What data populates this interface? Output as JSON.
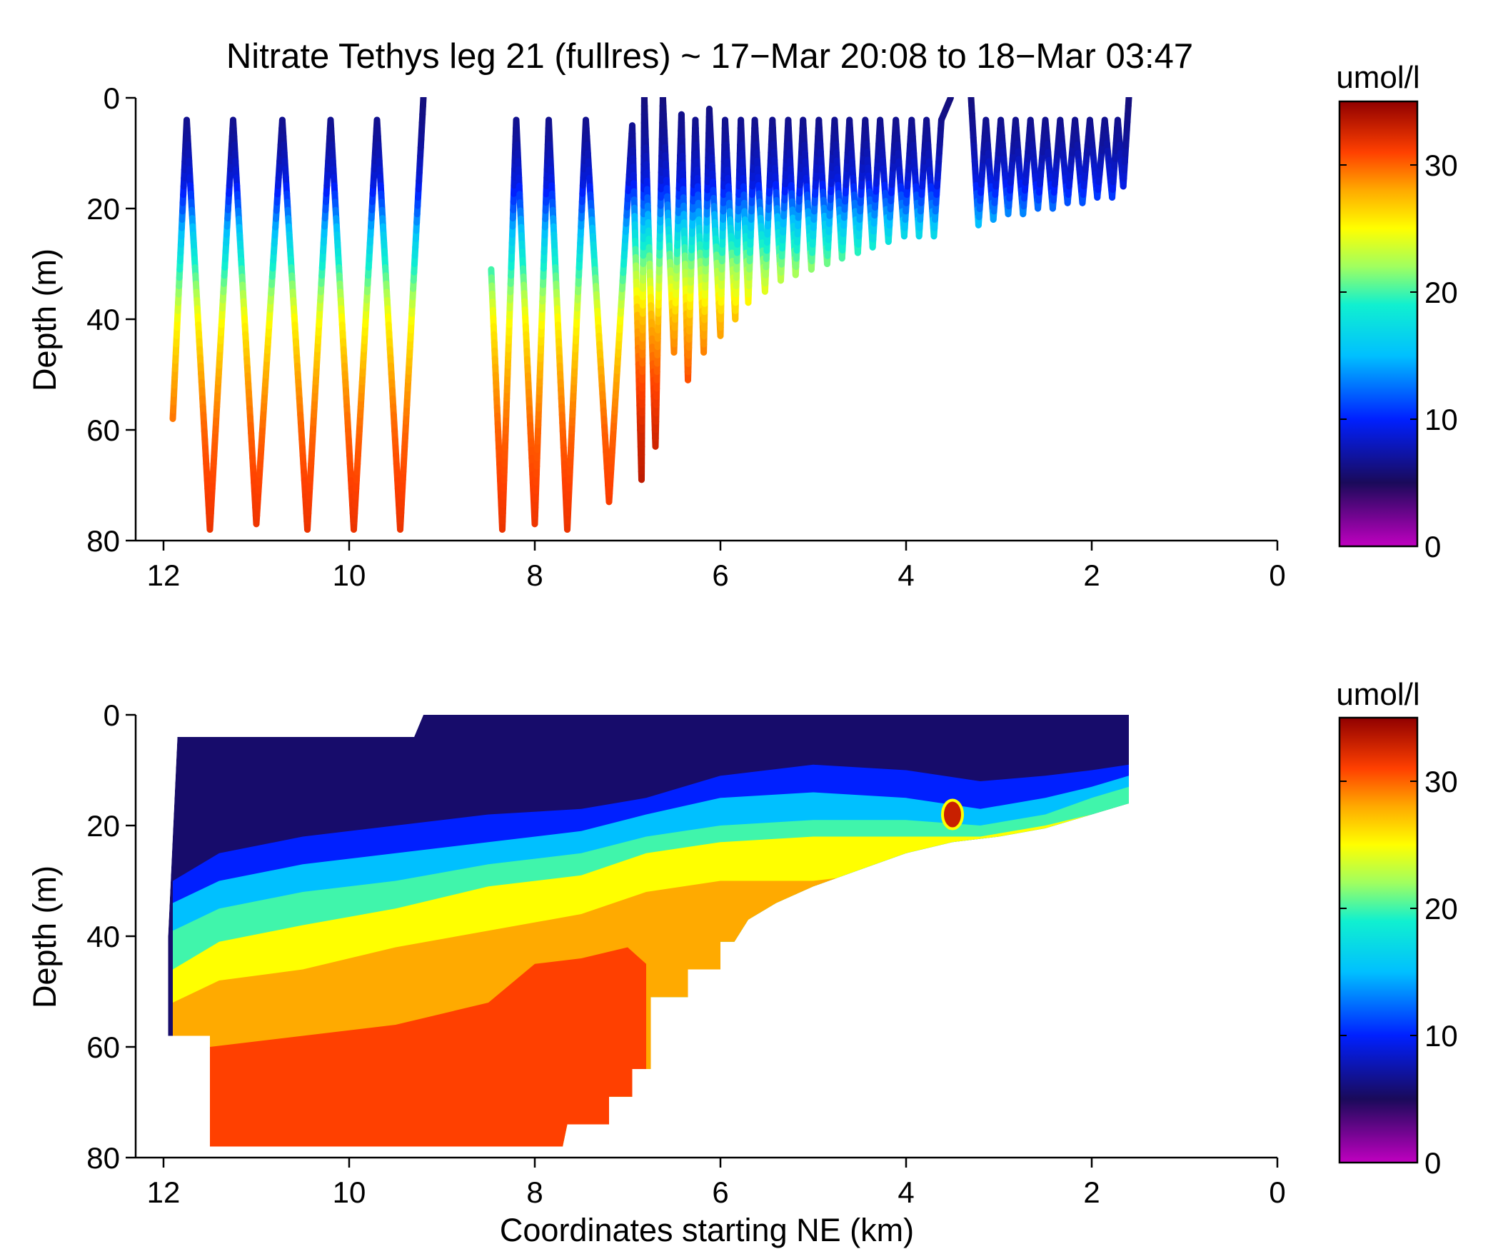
{
  "title": "Nitrate Tethys leg 21 (fullres) ~ 17−Mar 20:08 to 18−Mar 03:47",
  "colormap": {
    "name": "jet-with-magenta-floor",
    "stops": [
      {
        "v": 0,
        "color": "#c000c0"
      },
      {
        "v": 5,
        "color": "#1a0a5a"
      },
      {
        "v": 10,
        "color": "#0020ff"
      },
      {
        "v": 15,
        "color": "#00c0ff"
      },
      {
        "v": 19,
        "color": "#10f0d0"
      },
      {
        "v": 22,
        "color": "#a0ff60"
      },
      {
        "v": 25,
        "color": "#ffff00"
      },
      {
        "v": 28,
        "color": "#ffaa00"
      },
      {
        "v": 31,
        "color": "#ff4000"
      },
      {
        "v": 35,
        "color": "#900000"
      }
    ]
  },
  "chart_data": [
    {
      "type": "scatter",
      "subtype": "yo-yo profile track colored by nitrate",
      "title": "Nitrate Tethys leg 21 (fullres) ~ 17−Mar 20:08 to 18−Mar 03:47",
      "xlabel": "",
      "ylabel": "Depth (m)",
      "xlim": [
        12.3,
        0
      ],
      "ylim": [
        80,
        0
      ],
      "xticks": [
        12,
        10,
        8,
        6,
        4,
        2,
        0
      ],
      "yticks": [
        0,
        20,
        40,
        60,
        80
      ],
      "colorbar": {
        "label": "umol/l",
        "range": [
          0,
          35
        ],
        "ticks": [
          0,
          10,
          20,
          30
        ]
      },
      "track": [
        [
          11.9,
          58
        ],
        [
          11.75,
          4
        ],
        [
          11.5,
          78
        ],
        [
          11.25,
          4
        ],
        [
          11.0,
          77
        ],
        [
          10.72,
          4
        ],
        [
          10.45,
          78
        ],
        [
          10.2,
          4
        ],
        [
          9.95,
          78
        ],
        [
          9.7,
          4
        ],
        [
          9.45,
          78
        ],
        [
          9.2,
          0
        ],
        [
          8.47,
          31
        ],
        [
          8.35,
          78
        ],
        [
          8.2,
          4
        ],
        [
          8.0,
          77
        ],
        [
          7.85,
          4
        ],
        [
          7.65,
          78
        ],
        [
          7.45,
          4
        ],
        [
          7.2,
          73
        ],
        [
          6.95,
          5
        ],
        [
          6.85,
          69
        ],
        [
          6.82,
          0
        ],
        [
          6.7,
          63
        ],
        [
          6.62,
          0
        ],
        [
          6.5,
          46
        ],
        [
          6.42,
          3
        ],
        [
          6.35,
          51
        ],
        [
          6.27,
          4
        ],
        [
          6.18,
          46
        ],
        [
          6.12,
          2
        ],
        [
          6.0,
          43
        ],
        [
          5.95,
          4
        ],
        [
          5.84,
          40
        ],
        [
          5.78,
          4
        ],
        [
          5.7,
          37
        ],
        [
          5.63,
          4
        ],
        [
          5.52,
          35
        ],
        [
          5.44,
          4
        ],
        [
          5.35,
          33
        ],
        [
          5.27,
          4
        ],
        [
          5.19,
          32
        ],
        [
          5.11,
          4
        ],
        [
          5.02,
          31
        ],
        [
          4.94,
          4
        ],
        [
          4.85,
          30
        ],
        [
          4.77,
          4
        ],
        [
          4.69,
          29
        ],
        [
          4.61,
          4
        ],
        [
          4.52,
          28
        ],
        [
          4.44,
          4
        ],
        [
          4.36,
          27
        ],
        [
          4.28,
          4
        ],
        [
          4.19,
          26
        ],
        [
          4.11,
          4
        ],
        [
          4.02,
          25
        ],
        [
          3.94,
          4
        ],
        [
          3.86,
          25
        ],
        [
          3.78,
          4
        ],
        [
          3.7,
          25
        ],
        [
          3.62,
          4
        ],
        [
          3.52,
          0
        ],
        [
          3.3,
          0
        ],
        [
          3.22,
          23
        ],
        [
          3.14,
          4
        ],
        [
          3.06,
          22
        ],
        [
          2.98,
          4
        ],
        [
          2.9,
          21
        ],
        [
          2.82,
          4
        ],
        [
          2.74,
          21
        ],
        [
          2.66,
          4
        ],
        [
          2.58,
          20
        ],
        [
          2.5,
          4
        ],
        [
          2.42,
          20
        ],
        [
          2.34,
          4
        ],
        [
          2.26,
          19
        ],
        [
          2.18,
          4
        ],
        [
          2.1,
          19
        ],
        [
          2.02,
          4
        ],
        [
          1.94,
          18
        ],
        [
          1.86,
          4
        ],
        [
          1.78,
          18
        ],
        [
          1.72,
          4
        ],
        [
          1.66,
          16
        ],
        [
          1.6,
          0
        ]
      ],
      "breaks_after_points": [
        11,
        61
      ],
      "nitrate_profile": {
        "depth": [
          0,
          8,
          15,
          20,
          25,
          30,
          35,
          40,
          50,
          60,
          70,
          80
        ],
        "value": [
          6,
          7,
          9,
          12,
          16,
          19,
          22,
          25,
          28,
          30,
          31,
          32
        ]
      }
    },
    {
      "type": "heatmap",
      "subtype": "gridded nitrate section",
      "title": "",
      "xlabel": "Coordinates starting NE (km)",
      "ylabel": "Depth (m)",
      "xlim": [
        12.3,
        0
      ],
      "ylim": [
        80,
        0
      ],
      "xticks": [
        12,
        10,
        8,
        6,
        4,
        2,
        0
      ],
      "yticks": [
        0,
        20,
        40,
        60,
        80
      ],
      "colorbar": {
        "label": "umol/l",
        "range": [
          0,
          35
        ],
        "ticks": [
          0,
          10,
          20,
          30
        ]
      },
      "bottom_boundary": [
        [
          11.95,
          58
        ],
        [
          11.5,
          58
        ],
        [
          11.5,
          78
        ],
        [
          7.7,
          78
        ],
        [
          7.65,
          74
        ],
        [
          7.2,
          74
        ],
        [
          7.2,
          69
        ],
        [
          6.95,
          69
        ],
        [
          6.95,
          64
        ],
        [
          6.75,
          64
        ],
        [
          6.75,
          51
        ],
        [
          6.35,
          51
        ],
        [
          6.35,
          46
        ],
        [
          6.0,
          46
        ],
        [
          6.0,
          41
        ],
        [
          5.85,
          41
        ],
        [
          5.7,
          37
        ],
        [
          5.4,
          34
        ],
        [
          5.0,
          31
        ],
        [
          4.5,
          28
        ],
        [
          4.0,
          25
        ],
        [
          3.5,
          23
        ],
        [
          3.0,
          22
        ],
        [
          2.5,
          20.5
        ],
        [
          2.0,
          18
        ],
        [
          1.6,
          16
        ],
        [
          1.6,
          0
        ]
      ],
      "top_boundary": [
        [
          11.95,
          58
        ],
        [
          11.95,
          40
        ],
        [
          11.85,
          4
        ],
        [
          9.3,
          4
        ],
        [
          9.2,
          0
        ],
        [
          1.6,
          0
        ]
      ],
      "isolines": [
        {
          "value": 10,
          "points": [
            [
              11.9,
              30
            ],
            [
              11.4,
              25
            ],
            [
              10.5,
              22
            ],
            [
              9.5,
              20
            ],
            [
              8.5,
              18
            ],
            [
              7.5,
              17
            ],
            [
              6.8,
              15
            ],
            [
              6.0,
              11
            ],
            [
              5.0,
              9
            ],
            [
              4.0,
              10
            ],
            [
              3.2,
              12
            ],
            [
              2.5,
              11
            ],
            [
              2.0,
              10
            ],
            [
              1.6,
              9
            ]
          ]
        },
        {
          "value": 15,
          "points": [
            [
              11.9,
              34
            ],
            [
              11.4,
              30
            ],
            [
              10.5,
              27
            ],
            [
              9.5,
              25
            ],
            [
              8.5,
              23
            ],
            [
              7.5,
              21
            ],
            [
              6.8,
              18
            ],
            [
              6.0,
              15
            ],
            [
              5.0,
              14
            ],
            [
              4.0,
              15
            ],
            [
              3.2,
              17
            ],
            [
              2.5,
              15
            ],
            [
              2.0,
              13
            ],
            [
              1.6,
              11
            ]
          ]
        },
        {
          "value": 20,
          "points": [
            [
              11.9,
              39
            ],
            [
              11.4,
              35
            ],
            [
              10.5,
              32
            ],
            [
              9.5,
              30
            ],
            [
              8.5,
              27
            ],
            [
              7.5,
              25
            ],
            [
              6.8,
              22
            ],
            [
              6.0,
              20
            ],
            [
              5.0,
              19
            ],
            [
              4.0,
              19
            ],
            [
              3.2,
              20
            ],
            [
              2.5,
              18
            ],
            [
              2.0,
              15
            ],
            [
              1.6,
              13
            ]
          ]
        },
        {
          "value": 25,
          "points": [
            [
              11.9,
              46
            ],
            [
              11.4,
              41
            ],
            [
              10.5,
              38
            ],
            [
              9.5,
              35
            ],
            [
              8.5,
              31
            ],
            [
              7.5,
              29
            ],
            [
              6.8,
              25
            ],
            [
              6.0,
              23
            ],
            [
              5.0,
              22
            ],
            [
              4.0,
              22
            ],
            [
              3.2,
              22
            ],
            [
              2.5,
              20
            ],
            [
              2.0,
              18
            ],
            [
              1.6,
              16
            ]
          ]
        },
        {
          "value": 28,
          "points": [
            [
              11.9,
              52
            ],
            [
              11.4,
              48
            ],
            [
              10.5,
              46
            ],
            [
              9.5,
              42
            ],
            [
              8.5,
              39
            ],
            [
              7.5,
              36
            ],
            [
              6.8,
              32
            ],
            [
              6.0,
              30
            ],
            [
              5.0,
              30
            ],
            [
              4.0,
              28
            ],
            [
              3.5,
              25
            ]
          ]
        },
        {
          "value": 31,
          "points": [
            [
              11.5,
              60
            ],
            [
              10.5,
              58
            ],
            [
              9.5,
              56
            ],
            [
              8.5,
              52
            ],
            [
              8.0,
              45
            ],
            [
              7.5,
              44
            ],
            [
              7.0,
              42
            ],
            [
              6.8,
              45
            ]
          ]
        }
      ],
      "hotspot": {
        "x": 3.5,
        "y": 18,
        "value": 33
      }
    }
  ],
  "panels": [
    {
      "ylabel": "Depth (m)",
      "xlabel": "",
      "xtick_labels": [
        "12",
        "10",
        "8",
        "6",
        "4",
        "2",
        "0"
      ],
      "ytick_labels": [
        "0",
        "20",
        "40",
        "60",
        "80"
      ],
      "colorbar_label": "umol/l",
      "colorbar_tick_labels": [
        "0",
        "10",
        "20",
        "30"
      ]
    },
    {
      "ylabel": "Depth (m)",
      "xlabel": "Coordinates starting NE (km)",
      "xtick_labels": [
        "12",
        "10",
        "8",
        "6",
        "4",
        "2",
        "0"
      ],
      "ytick_labels": [
        "0",
        "20",
        "40",
        "60",
        "80"
      ],
      "colorbar_label": "umol/l",
      "colorbar_tick_labels": [
        "0",
        "10",
        "20",
        "30"
      ]
    }
  ]
}
